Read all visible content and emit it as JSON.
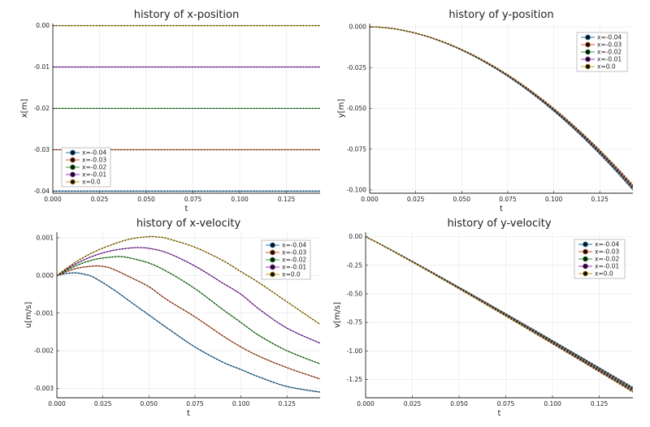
{
  "chart_data": [
    {
      "type": "line",
      "title": "history of x-position",
      "xlabel": "t",
      "ylabel": "x[m]",
      "xlim": [
        0,
        0.143
      ],
      "ylim": [
        -0.0405,
        0.0005
      ],
      "xticks": [
        0.0,
        0.025,
        0.05,
        0.075,
        0.1,
        0.125
      ],
      "xtick_labels": [
        "0.000",
        "0.025",
        "0.050",
        "0.075",
        "0.100",
        "0.125"
      ],
      "yticks": [
        0.0,
        -0.01,
        -0.02,
        -0.03,
        -0.04
      ],
      "ytick_labels": [
        "0.00",
        "-0.01",
        "-0.02",
        "-0.03",
        "-0.04"
      ],
      "legend_position": "bottom-left",
      "grid": true,
      "t_end": 0.143,
      "series": [
        {
          "name": "x=-0.04",
          "color": "#1f77b4",
          "values": [
            -0.04,
            -0.04
          ]
        },
        {
          "name": "x=-0.03",
          "color": "#d4582a",
          "values": [
            -0.03,
            -0.03
          ]
        },
        {
          "name": "x=-0.02",
          "color": "#2ca02c",
          "values": [
            -0.02,
            -0.02
          ]
        },
        {
          "name": "x=-0.01",
          "color": "#9b30c4",
          "values": [
            -0.01,
            -0.01
          ]
        },
        {
          "name": "x=0.0",
          "color": "#c8a21e",
          "values": [
            0.0,
            0.0
          ]
        }
      ]
    },
    {
      "type": "line",
      "title": "history of y-position",
      "xlabel": "t",
      "ylabel": "y[m]",
      "xlim": [
        0,
        0.143
      ],
      "ylim": [
        -0.102,
        0.002
      ],
      "xticks": [
        0.0,
        0.025,
        0.05,
        0.075,
        0.1,
        0.125
      ],
      "xtick_labels": [
        "0.000",
        "0.025",
        "0.050",
        "0.075",
        "0.100",
        "0.125"
      ],
      "yticks": [
        0.0,
        -0.025,
        -0.05,
        -0.075,
        -0.1
      ],
      "ytick_labels": [
        "0.000",
        "-0.025",
        "-0.050",
        "-0.075",
        "-0.100"
      ],
      "legend_position": "top-right",
      "grid": true,
      "t_end": 0.143,
      "series": [
        {
          "name": "x=-0.04",
          "color": "#1f77b4",
          "values": [
            0.0,
            -0.1
          ]
        },
        {
          "name": "x=-0.03",
          "color": "#d4582a",
          "values": [
            0.0,
            -0.099
          ]
        },
        {
          "name": "x=-0.02",
          "color": "#2ca02c",
          "values": [
            0.0,
            -0.0985
          ]
        },
        {
          "name": "x=-0.01",
          "color": "#9b30c4",
          "values": [
            0.0,
            -0.098
          ]
        },
        {
          "name": "x=0.0",
          "color": "#c8a21e",
          "values": [
            0.0,
            -0.097
          ]
        }
      ]
    },
    {
      "type": "line",
      "title": "history of x-velocity",
      "xlabel": "t",
      "ylabel": "u[m/s]",
      "xlim": [
        0,
        0.143
      ],
      "ylim": [
        -0.00325,
        0.00115
      ],
      "xticks": [
        0.0,
        0.025,
        0.05,
        0.075,
        0.1,
        0.125
      ],
      "xtick_labels": [
        "0.000",
        "0.025",
        "0.050",
        "0.075",
        "0.100",
        "0.125"
      ],
      "yticks": [
        0.001,
        0.0,
        -0.001,
        -0.002,
        -0.003
      ],
      "ytick_labels": [
        "0.001",
        "0.000",
        "-0.001",
        "-0.002",
        "-0.003"
      ],
      "legend_position": "top-right",
      "grid": true,
      "series": [
        {
          "name": "x=-0.04",
          "color": "#1f77b4",
          "x": [
            0,
            0.005,
            0.01,
            0.015,
            0.02,
            0.03,
            0.04,
            0.05,
            0.06,
            0.075,
            0.09,
            0.1,
            0.11,
            0.125,
            0.143
          ],
          "values": [
            0.0,
            5e-05,
            7e-05,
            3e-05,
            -5e-05,
            -0.00035,
            -0.0007,
            -0.00105,
            -0.0014,
            -0.0019,
            -0.0023,
            -0.0025,
            -0.0027,
            -0.00295,
            -0.0031
          ]
        },
        {
          "name": "x=-0.03",
          "color": "#d4582a",
          "x": [
            0,
            0.01,
            0.02,
            0.025,
            0.03,
            0.04,
            0.05,
            0.06,
            0.075,
            0.09,
            0.1,
            0.11,
            0.125,
            0.143
          ],
          "values": [
            0.0,
            0.00018,
            0.00025,
            0.00024,
            0.00018,
            -5e-05,
            -0.0003,
            -0.00065,
            -0.0011,
            -0.0016,
            -0.0019,
            -0.00215,
            -0.00245,
            -0.00275
          ]
        },
        {
          "name": "x=-0.02",
          "color": "#2ca02c",
          "x": [
            0,
            0.01,
            0.02,
            0.03,
            0.035,
            0.04,
            0.05,
            0.06,
            0.075,
            0.09,
            0.1,
            0.11,
            0.125,
            0.143
          ],
          "values": [
            0.0,
            0.00025,
            0.00042,
            0.00049,
            0.0005,
            0.00046,
            0.00033,
            0.0001,
            -0.00035,
            -0.0009,
            -0.00125,
            -0.0016,
            -0.002,
            -0.00235
          ]
        },
        {
          "name": "x=-0.01",
          "color": "#9b30c4",
          "x": [
            0,
            0.01,
            0.02,
            0.03,
            0.04,
            0.045,
            0.05,
            0.06,
            0.075,
            0.09,
            0.1,
            0.11,
            0.125,
            0.143
          ],
          "values": [
            0.0,
            0.0003,
            0.00052,
            0.00066,
            0.00073,
            0.00074,
            0.00072,
            0.0006,
            0.00025,
            -0.0002,
            -0.0005,
            -0.0009,
            -0.0014,
            -0.0018
          ]
        },
        {
          "name": "x=0.0",
          "color": "#c8a21e",
          "x": [
            0,
            0.01,
            0.02,
            0.03,
            0.04,
            0.05,
            0.055,
            0.06,
            0.075,
            0.09,
            0.1,
            0.11,
            0.125,
            0.143
          ],
          "values": [
            0.0,
            0.00035,
            0.00062,
            0.00082,
            0.00097,
            0.00103,
            0.00102,
            0.00098,
            0.00075,
            0.0004,
            0.0001,
            -0.0002,
            -0.0007,
            -0.0013
          ]
        }
      ]
    },
    {
      "type": "line",
      "title": "history of y-velocity",
      "xlabel": "t",
      "ylabel": "v[m/s]",
      "xlim": [
        0,
        0.143
      ],
      "ylim": [
        -1.41,
        0.04
      ],
      "xticks": [
        0.0,
        0.025,
        0.05,
        0.075,
        0.1,
        0.125
      ],
      "xtick_labels": [
        "0.000",
        "0.025",
        "0.050",
        "0.075",
        "0.100",
        "0.125"
      ],
      "yticks": [
        0.0,
        -0.25,
        -0.5,
        -0.75,
        -1.0,
        -1.25
      ],
      "ytick_labels": [
        "0.00",
        "-0.25",
        "-0.50",
        "-0.75",
        "-1.00",
        "-1.25"
      ],
      "legend_position": "top-right",
      "grid": true,
      "t_end": 0.143,
      "series": [
        {
          "name": "x=-0.04",
          "color": "#1f77b4",
          "values": [
            0.0,
            -1.32
          ]
        },
        {
          "name": "x=-0.03",
          "color": "#d4582a",
          "values": [
            0.0,
            -1.33
          ]
        },
        {
          "name": "x=-0.02",
          "color": "#2ca02c",
          "values": [
            0.0,
            -1.34
          ]
        },
        {
          "name": "x=-0.01",
          "color": "#9b30c4",
          "values": [
            0.0,
            -1.35
          ]
        },
        {
          "name": "x=0.0",
          "color": "#c8a21e",
          "values": [
            0.0,
            -1.36
          ]
        }
      ]
    }
  ]
}
